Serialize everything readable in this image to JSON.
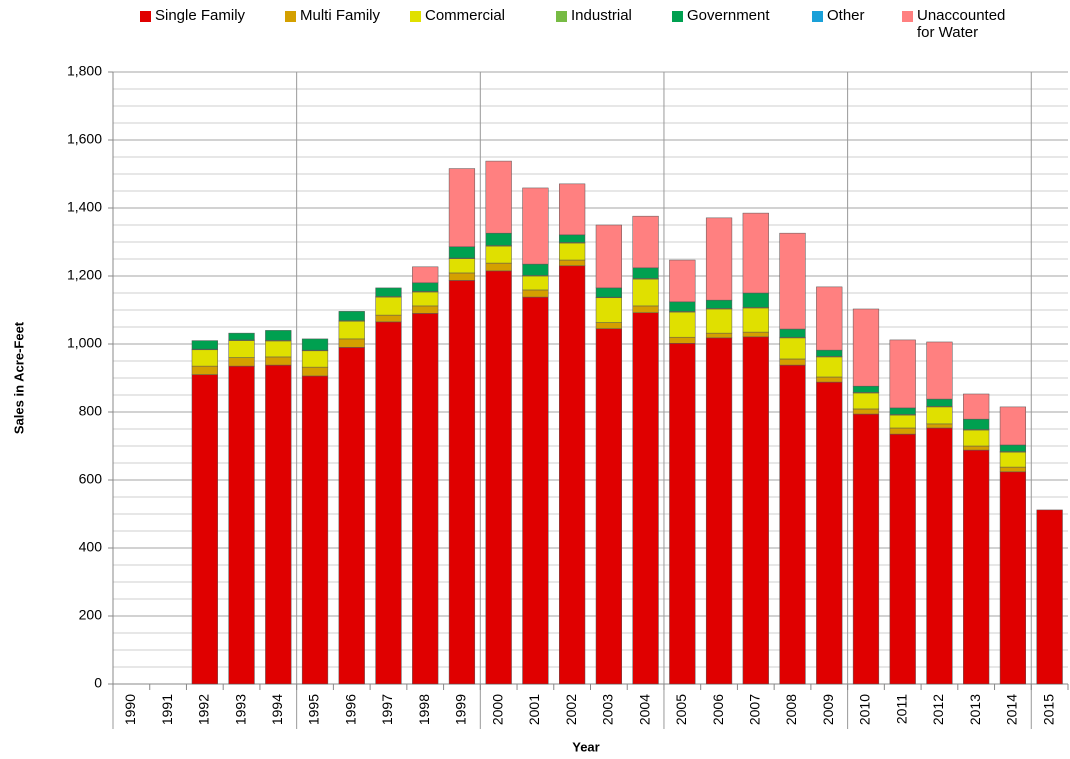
{
  "chart_data": {
    "type": "stacked-bar",
    "y_label": "Sales in Acre-Feet",
    "x_label": "Year",
    "categories": [
      "1990",
      "1991",
      "1992",
      "1993",
      "1994",
      "1995",
      "1996",
      "1997",
      "1998",
      "1999",
      "2000",
      "2001",
      "2002",
      "2003",
      "2004",
      "2005",
      "2006",
      "2007",
      "2008",
      "2009",
      "2010",
      "2011",
      "2012",
      "2013",
      "2014",
      "2015"
    ],
    "series": [
      {
        "name": "Single Family",
        "color": "#e00000",
        "values": [
          null,
          null,
          910,
          935,
          938,
          906,
          990,
          1065,
          1090,
          1187,
          1215,
          1138,
          1230,
          1045,
          1092,
          1002,
          1018,
          1021,
          938,
          888,
          794,
          735,
          753,
          688,
          624,
          512
        ]
      },
      {
        "name": "Multi Family",
        "color": "#d4a000",
        "values": [
          null,
          null,
          25,
          25,
          24,
          26,
          25,
          20,
          22,
          22,
          23,
          21,
          17,
          18,
          20,
          18,
          14,
          14,
          18,
          15,
          15,
          18,
          12,
          12,
          14,
          null
        ]
      },
      {
        "name": "Commercial",
        "color": "#e0e000",
        "values": [
          null,
          null,
          48,
          50,
          47,
          48,
          52,
          53,
          41,
          42,
          50,
          41,
          50,
          73,
          79,
          74,
          71,
          71,
          62,
          59,
          47,
          38,
          50,
          47,
          44,
          null
        ]
      },
      {
        "name": "Industrial",
        "color": "#77bb44",
        "values": [
          null,
          null,
          2,
          2,
          2,
          2,
          2,
          2,
          2,
          2,
          2,
          2,
          2,
          2,
          2,
          2,
          2,
          2,
          2,
          2,
          2,
          2,
          2,
          2,
          2,
          null
        ]
      },
      {
        "name": "Government",
        "color": "#00a050",
        "values": [
          null,
          null,
          25,
          20,
          29,
          33,
          27,
          25,
          25,
          33,
          36,
          33,
          22,
          27,
          31,
          28,
          24,
          42,
          24,
          18,
          18,
          19,
          21,
          30,
          19,
          null
        ]
      },
      {
        "name": "Other",
        "color": "#1aa0d8",
        "values": [
          null,
          null,
          0,
          0,
          0,
          0,
          0,
          0,
          0,
          0,
          0,
          0,
          0,
          0,
          0,
          0,
          0,
          0,
          0,
          0,
          0,
          0,
          0,
          0,
          0,
          null
        ]
      },
      {
        "name": "Unaccounted for Water",
        "color": "#ff8080",
        "values": [
          null,
          null,
          0,
          0,
          0,
          0,
          0,
          0,
          47,
          230,
          212,
          224,
          150,
          185,
          152,
          123,
          242,
          235,
          282,
          186,
          227,
          200,
          168,
          74,
          112,
          null
        ]
      }
    ],
    "ylim": [
      0,
      1800
    ],
    "yticks": [
      0,
      200,
      400,
      600,
      800,
      {
        "value": 1000,
        "label": "1,000"
      },
      {
        "value": 1200,
        "label": "1,200"
      },
      {
        "value": 1400,
        "label": "1,400"
      },
      {
        "value": 1600,
        "label": "1,600"
      },
      {
        "value": 1800,
        "label": "1,800"
      }
    ],
    "yminorticks": [
      50,
      100,
      150,
      250,
      300,
      350,
      450,
      500,
      550,
      650,
      700,
      750,
      850,
      900,
      950,
      1050,
      1100,
      1150,
      1250,
      1300,
      1350,
      1450,
      1500,
      1550,
      1650,
      1700,
      1750
    ],
    "grid": true
  }
}
